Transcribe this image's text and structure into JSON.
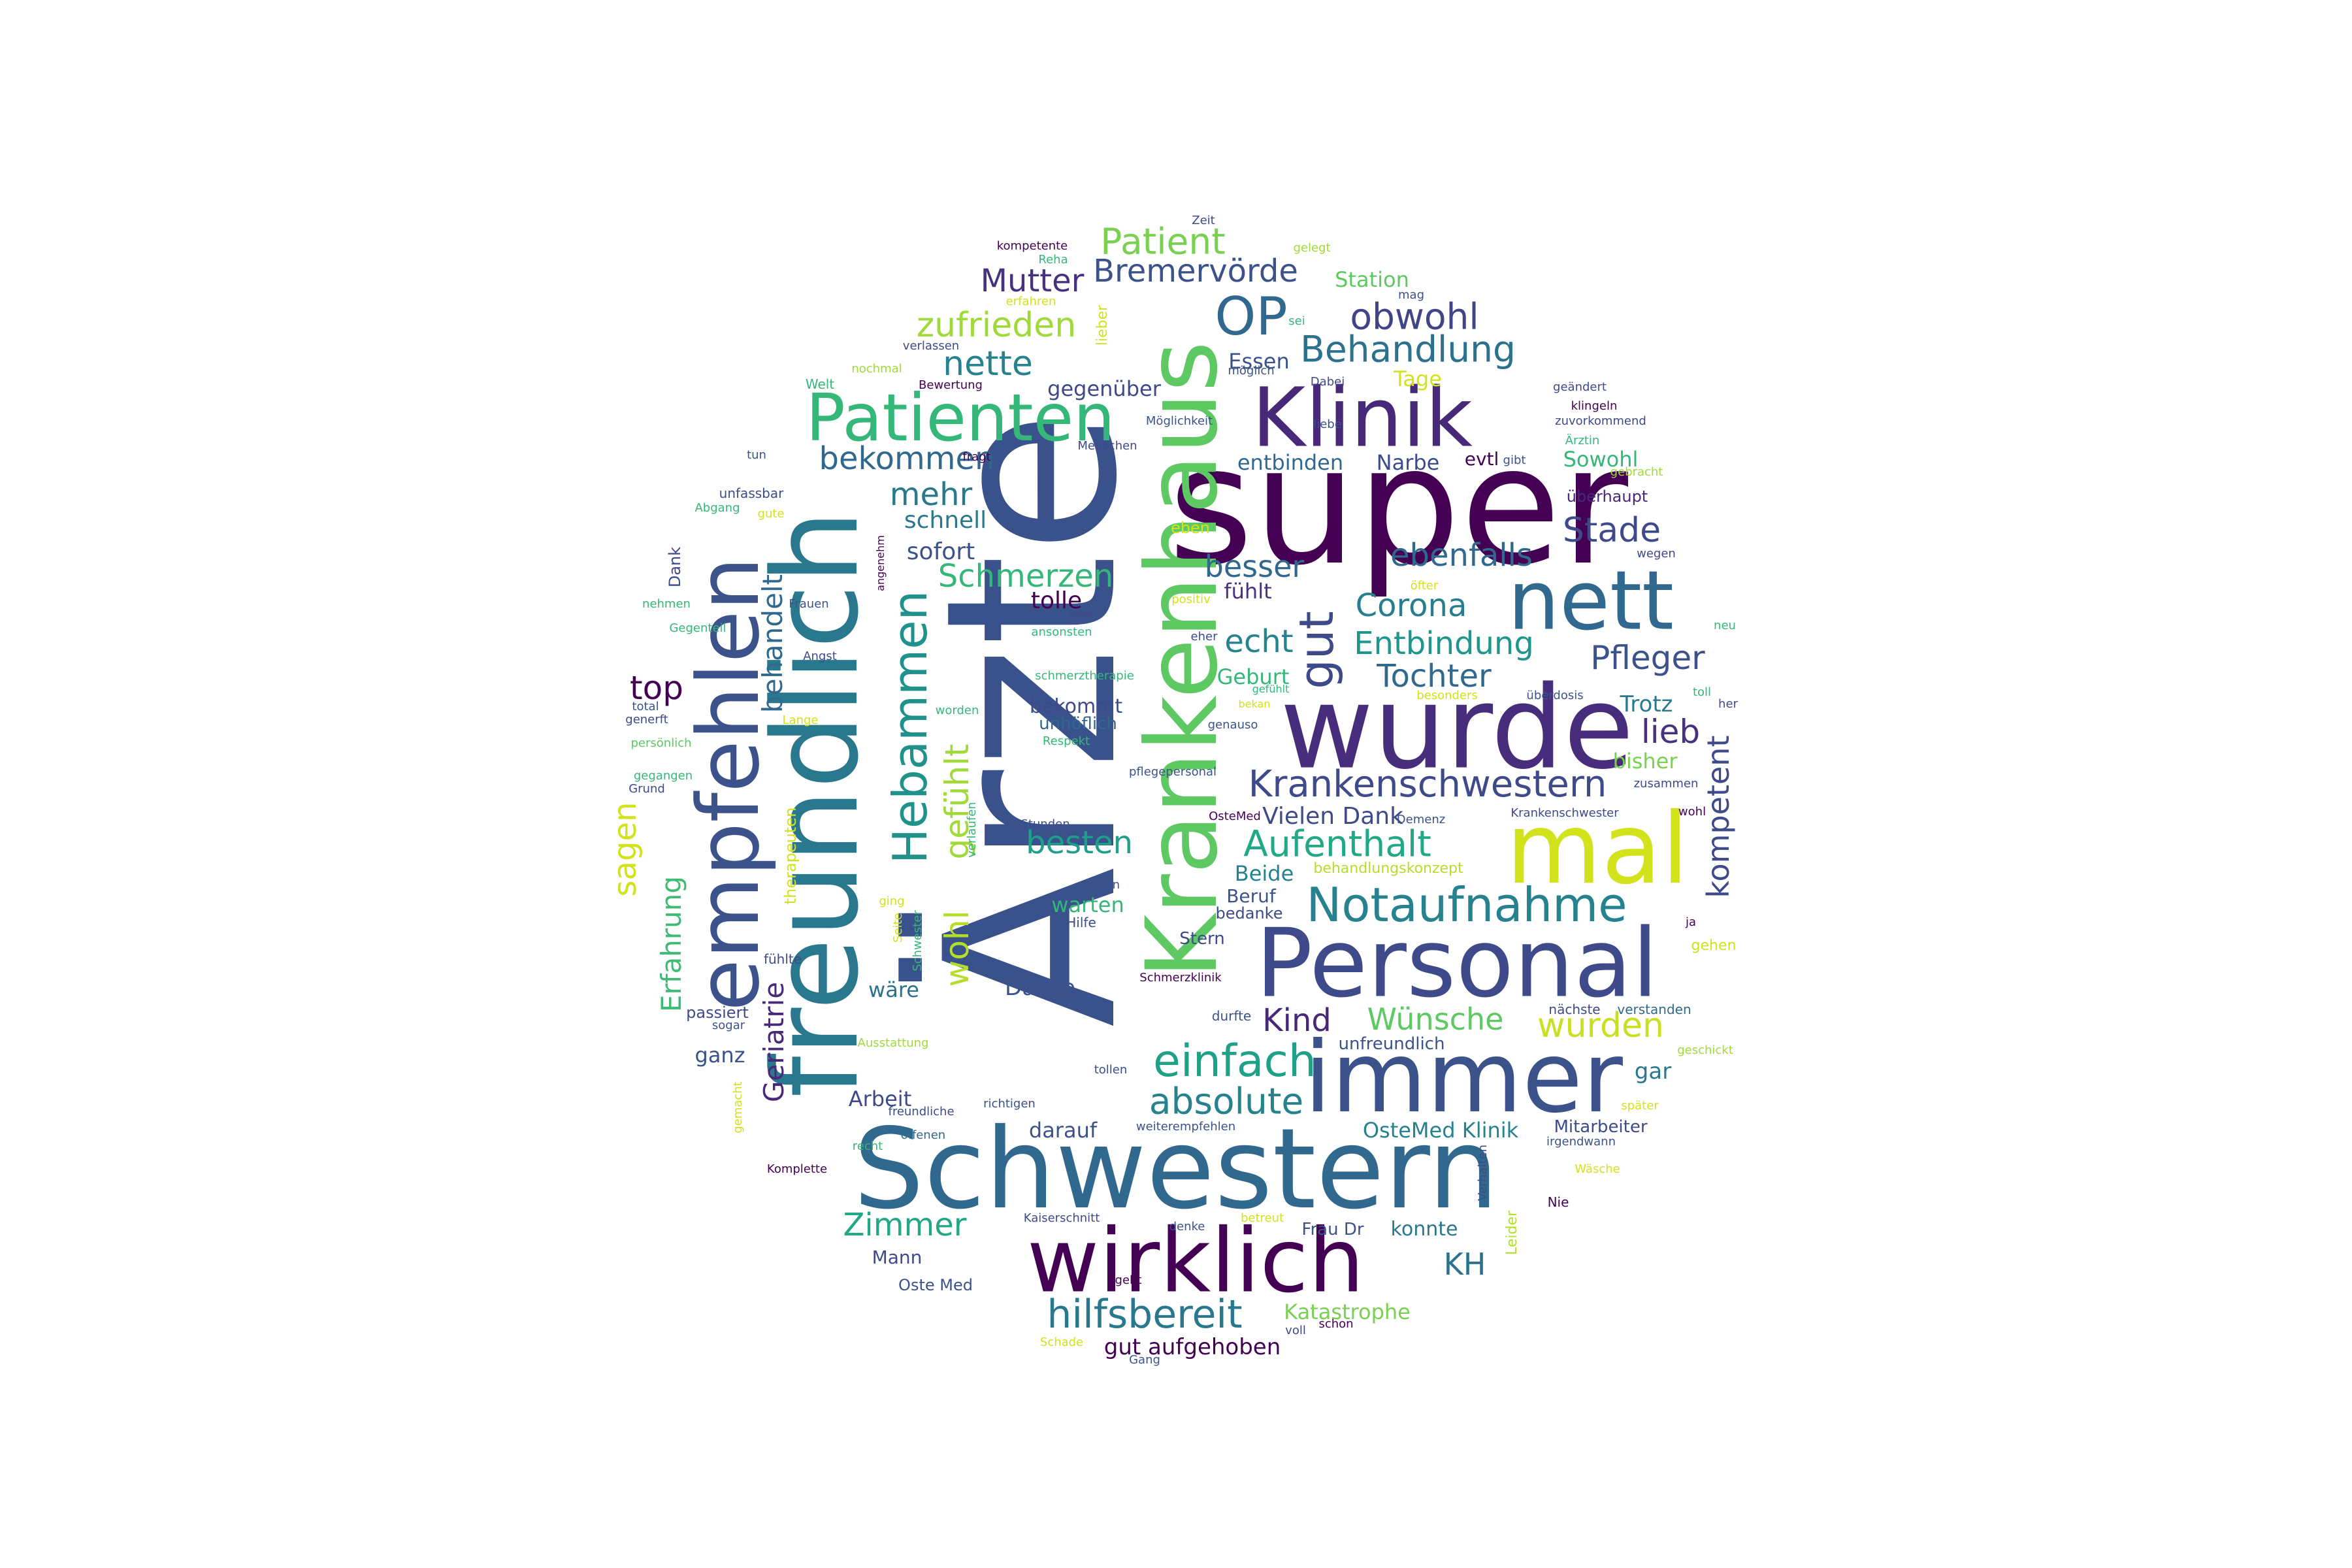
{
  "words": [
    {
      "text": "Ärzte",
      "color": "#3a528b",
      "rotated": true
    },
    {
      "text": "super",
      "color": "#440154",
      "rotated": false
    },
    {
      "text": "Schwestern",
      "color": "#31688e",
      "rotated": false
    },
    {
      "text": "freundlich",
      "color": "#2a788e",
      "rotated": true
    },
    {
      "text": "Krankenhaus",
      "color": "#5ec962",
      "rotated": true
    },
    {
      "text": "wurde",
      "color": "#472d7b",
      "rotated": false
    },
    {
      "text": "immer",
      "color": "#3b528b",
      "rotated": false
    },
    {
      "text": "Personal",
      "color": "#3e4a89",
      "rotated": false
    },
    {
      "text": "wirklich",
      "color": "#440154",
      "rotated": false
    },
    {
      "text": "empfehlen",
      "color": "#3b528b",
      "rotated": true
    },
    {
      "text": "mal",
      "color": "#d2e21b",
      "rotated": false
    },
    {
      "text": "Klinik",
      "color": "#482878",
      "rotated": false
    },
    {
      "text": "nett",
      "color": "#31688e",
      "rotated": false
    },
    {
      "text": "Patienten",
      "color": "#35b779",
      "rotated": false
    },
    {
      "text": "Notaufnahme",
      "color": "#26828e",
      "rotated": false
    },
    {
      "text": "gut",
      "color": "#3e4989",
      "rotated": true
    },
    {
      "text": "Hebammen",
      "color": "#21918c",
      "rotated": true
    },
    {
      "text": "einfach",
      "color": "#1fa187",
      "rotated": false
    },
    {
      "text": "OP",
      "color": "#31688e",
      "rotated": false
    },
    {
      "text": "Krankenschwestern",
      "color": "#3e4a89",
      "rotated": false
    },
    {
      "text": "hilfsbereit",
      "color": "#2a788e",
      "rotated": false
    },
    {
      "text": "absolute",
      "color": "#26828e",
      "rotated": false
    },
    {
      "text": "Aufenthalt",
      "color": "#22a884",
      "rotated": false
    },
    {
      "text": "Behandlung",
      "color": "#2c728e",
      "rotated": false
    },
    {
      "text": "obwohl",
      "color": "#414487",
      "rotated": false
    },
    {
      "text": "nette",
      "color": "#26828e",
      "rotated": false
    },
    {
      "text": "zufrieden",
      "color": "#a0da39",
      "rotated": false
    },
    {
      "text": "Patient",
      "color": "#7ad151",
      "rotated": false
    },
    {
      "text": "Bremervörde",
      "color": "#3b528b",
      "rotated": false
    },
    {
      "text": "Mutter",
      "color": "#46327e",
      "rotated": false
    },
    {
      "text": "bekommen",
      "color": "#31688e",
      "rotated": false
    },
    {
      "text": "mehr",
      "color": "#2a788e",
      "rotated": false
    },
    {
      "text": "Schmerzen",
      "color": "#35b779",
      "rotated": false
    },
    {
      "text": "wohl",
      "color": "#b5de2b",
      "rotated": true
    },
    {
      "text": "gefühlt",
      "color": "#a0da39",
      "rotated": true
    },
    {
      "text": "besten",
      "color": "#1f9e89",
      "rotated": false
    },
    {
      "text": "echt",
      "color": "#26828e",
      "rotated": false
    },
    {
      "text": "Corona",
      "color": "#287d8e",
      "rotated": false
    },
    {
      "text": "Entbindung",
      "color": "#1f968b",
      "rotated": false
    },
    {
      "text": "Tochter",
      "color": "#31688e",
      "rotated": false
    },
    {
      "text": "Pfleger",
      "color": "#3b528b",
      "rotated": false
    },
    {
      "text": "lieb",
      "color": "#46327e",
      "rotated": false
    },
    {
      "text": "ebenfalls",
      "color": "#31688e",
      "rotated": false
    },
    {
      "text": "Stade",
      "color": "#3e4a89",
      "rotated": false
    },
    {
      "text": "wurden",
      "color": "#c8e020",
      "rotated": false
    },
    {
      "text": "Wünsche",
      "color": "#5ec962",
      "rotated": false
    },
    {
      "text": "Kind",
      "color": "#482878",
      "rotated": false
    },
    {
      "text": "Zimmer",
      "color": "#22a884",
      "rotated": false
    },
    {
      "text": "KH",
      "color": "#2c728e",
      "rotated": false
    },
    {
      "text": "kompetent",
      "color": "#3e4a89",
      "rotated": true
    },
    {
      "text": "top",
      "color": "#440154",
      "rotated": false
    },
    {
      "text": "behandelt",
      "color": "#31688e",
      "rotated": true
    },
    {
      "text": "sagen",
      "color": "#d2e21b",
      "rotated": true
    },
    {
      "text": "Erfahrung",
      "color": "#3fbc73",
      "rotated": true
    },
    {
      "text": "Geriatrie",
      "color": "#482878",
      "rotated": true
    },
    {
      "text": "besser",
      "color": "#31688e",
      "rotated": false
    },
    {
      "text": "schnell",
      "color": "#2a788e",
      "rotated": false
    },
    {
      "text": "sofort",
      "color": "#3b528b",
      "rotated": false
    },
    {
      "text": "tolle",
      "color": "#440154",
      "rotated": false
    },
    {
      "text": "fühlt",
      "color": "#46327e",
      "rotated": false
    },
    {
      "text": "Geburt",
      "color": "#35b779",
      "rotated": false
    },
    {
      "text": "Vielen Dank",
      "color": "#3e4a89",
      "rotated": false
    },
    {
      "text": "Trotz",
      "color": "#2a788e",
      "rotated": false
    },
    {
      "text": "bisher",
      "color": "#7ad151",
      "rotated": false
    },
    {
      "text": "Sowohl",
      "color": "#35b779",
      "rotated": false
    },
    {
      "text": "überhaupt",
      "color": "#482878",
      "rotated": false
    },
    {
      "text": "Narbe",
      "color": "#3e4a89",
      "rotated": false
    },
    {
      "text": "entbinden",
      "color": "#31688e",
      "rotated": false
    },
    {
      "text": "evtl",
      "color": "#440154",
      "rotated": false
    },
    {
      "text": "Essen",
      "color": "#3b528b",
      "rotated": false
    },
    {
      "text": "Tage",
      "color": "#d2e21b",
      "rotated": false
    },
    {
      "text": "gegenüber",
      "color": "#3e4a89",
      "rotated": false
    },
    {
      "text": "Station",
      "color": "#5ec962",
      "rotated": false
    },
    {
      "text": "Beide",
      "color": "#26828e",
      "rotated": false
    },
    {
      "text": "Beruf",
      "color": "#3b528b",
      "rotated": false
    },
    {
      "text": "bedanke",
      "color": "#3e4a89",
      "rotated": false
    },
    {
      "text": "warten",
      "color": "#35b779",
      "rotated": false
    },
    {
      "text": "Danke",
      "color": "#3b528b",
      "rotated": false
    },
    {
      "text": "wäre",
      "color": "#2c728e",
      "rotated": false
    },
    {
      "text": "ganz",
      "color": "#3b528b",
      "rotated": false
    },
    {
      "text": "Arbeit",
      "color": "#3e4a89",
      "rotated": false
    },
    {
      "text": "darauf",
      "color": "#3b528b",
      "rotated": false
    },
    {
      "text": "OsteMed Klinik",
      "color": "#26828e",
      "rotated": false
    },
    {
      "text": "Mitarbeiter",
      "color": "#3e4a89",
      "rotated": false
    },
    {
      "text": "gar",
      "color": "#2a788e",
      "rotated": false
    },
    {
      "text": "Katastrophe",
      "color": "#7ad151",
      "rotated": false
    },
    {
      "text": "gut aufgehoben",
      "color": "#440154",
      "rotated": false
    },
    {
      "text": "konnte",
      "color": "#2a788e",
      "rotated": false
    },
    {
      "text": "Frau Dr",
      "color": "#3b528b",
      "rotated": false
    },
    {
      "text": "Mann",
      "color": "#3e4a89",
      "rotated": false
    },
    {
      "text": "Oste Med",
      "color": "#3b528b",
      "rotated": false
    },
    {
      "text": "bekommt",
      "color": "#3e4a89",
      "rotated": false
    },
    {
      "text": "unhöflich",
      "color": "#31688e",
      "rotated": false
    },
    {
      "text": "behandlungskonzept",
      "color": "#b5de2b",
      "rotated": false
    },
    {
      "text": "unfreundlich",
      "color": "#3b528b",
      "rotated": false
    },
    {
      "text": "Stern",
      "color": "#3e4a89",
      "rotated": false
    },
    {
      "text": "Schmerzklinik",
      "color": "#440154",
      "rotated": false
    },
    {
      "text": "durfte",
      "color": "#3b528b",
      "rotated": false
    },
    {
      "text": "nächste",
      "color": "#3e4a89",
      "rotated": false
    },
    {
      "text": "verstanden",
      "color": "#31688e",
      "rotated": false
    },
    {
      "text": "gehen",
      "color": "#d2e21b",
      "rotated": false
    },
    {
      "text": "geschickt",
      "color": "#a0da39",
      "rotated": false
    },
    {
      "text": "später",
      "color": "#d2e21b",
      "rotated": false
    },
    {
      "text": "irgendwann",
      "color": "#3b528b",
      "rotated": false
    },
    {
      "text": "Wäsche",
      "color": "#d2e21b",
      "rotated": false
    },
    {
      "text": "Nie",
      "color": "#440154",
      "rotated": false
    },
    {
      "text": "Leider",
      "color": "#b5de2b",
      "rotated": true
    },
    {
      "text": "Verhalten",
      "color": "#3e4a89",
      "rotated": true
    },
    {
      "text": "betreut",
      "color": "#d2e21b",
      "rotated": false
    },
    {
      "text": "denke",
      "color": "#3b528b",
      "rotated": false
    },
    {
      "text": "Kaiserschnitt",
      "color": "#3e4a89",
      "rotated": false
    },
    {
      "text": "geht",
      "color": "#440154",
      "rotated": false
    },
    {
      "text": "Schade",
      "color": "#d2e21b",
      "rotated": false
    },
    {
      "text": "voll",
      "color": "#3e4a89",
      "rotated": false
    },
    {
      "text": "schon",
      "color": "#440154",
      "rotated": false
    },
    {
      "text": "Gang",
      "color": "#3b528b",
      "rotated": false
    },
    {
      "text": "weiterempfehlen",
      "color": "#3b528b",
      "rotated": false
    },
    {
      "text": "tollen",
      "color": "#3e4a89",
      "rotated": false
    },
    {
      "text": "richtigen",
      "color": "#3b528b",
      "rotated": false
    },
    {
      "text": "freundliche",
      "color": "#3e4a89",
      "rotated": false
    },
    {
      "text": "offenen",
      "color": "#31688e",
      "rotated": false
    },
    {
      "text": "recht",
      "color": "#35b779",
      "rotated": false
    },
    {
      "text": "Komplette",
      "color": "#440154",
      "rotated": false
    },
    {
      "text": "Ausstattung",
      "color": "#a0da39",
      "rotated": false
    },
    {
      "text": "gemacht",
      "color": "#d2e21b",
      "rotated": true
    },
    {
      "text": "passiert",
      "color": "#3e4a89",
      "rotated": false
    },
    {
      "text": "sogar",
      "color": "#3b528b",
      "rotated": false
    },
    {
      "text": "fühlte",
      "color": "#3e4a89",
      "rotated": false
    },
    {
      "text": "therapeuten",
      "color": "#d2e21b",
      "rotated": true
    },
    {
      "text": "Seite",
      "color": "#d2e21b",
      "rotated": true
    },
    {
      "text": "Schwester",
      "color": "#35b779",
      "rotated": true
    },
    {
      "text": "ging",
      "color": "#d2e21b",
      "rotated": false
    },
    {
      "text": "verlaufen",
      "color": "#35b779",
      "rotated": true
    },
    {
      "text": "Hilfe",
      "color": "#3e4a89",
      "rotated": false
    },
    {
      "text": "deren",
      "color": "#3b528b",
      "rotated": false
    },
    {
      "text": "Stunden",
      "color": "#3e4a89",
      "rotated": false
    },
    {
      "text": "OsteMed",
      "color": "#440154",
      "rotated": false
    },
    {
      "text": "pflegepersonal",
      "color": "#3b528b",
      "rotated": false
    },
    {
      "text": "Demenz",
      "color": "#3b528b",
      "rotated": false
    },
    {
      "text": "Krankenschwester",
      "color": "#3e4a89",
      "rotated": false
    },
    {
      "text": "wohl",
      "color": "#440154",
      "rotated": false
    },
    {
      "text": "zusammen",
      "color": "#3e4a89",
      "rotated": false
    },
    {
      "text": "ja",
      "color": "#440154",
      "rotated": false
    },
    {
      "text": "genauso",
      "color": "#3b528b",
      "rotated": false
    },
    {
      "text": "Respekt",
      "color": "#35b779",
      "rotated": false
    },
    {
      "text": "worden",
      "color": "#35b779",
      "rotated": false
    },
    {
      "text": "Lange",
      "color": "#d2e21b",
      "rotated": false
    },
    {
      "text": "persönlich",
      "color": "#5ec962",
      "rotated": false
    },
    {
      "text": "gegangen",
      "color": "#35b779",
      "rotated": false
    },
    {
      "text": "Grund",
      "color": "#3e4a89",
      "rotated": false
    },
    {
      "text": "generft",
      "color": "#3e4a89",
      "rotated": false
    },
    {
      "text": "total",
      "color": "#3b528b",
      "rotated": false
    },
    {
      "text": "Gegenteil",
      "color": "#35b779",
      "rotated": false
    },
    {
      "text": "nehmen",
      "color": "#35b779",
      "rotated": false
    },
    {
      "text": "Angst",
      "color": "#3e4a89",
      "rotated": false
    },
    {
      "text": "Frauen",
      "color": "#3b528b",
      "rotated": false
    },
    {
      "text": "Dank",
      "color": "#3e4a89",
      "rotated": true
    },
    {
      "text": "angenehm",
      "color": "#440154",
      "rotated": true
    },
    {
      "text": "Abgang",
      "color": "#35b779",
      "rotated": false
    },
    {
      "text": "gute",
      "color": "#d2e21b",
      "rotated": false
    },
    {
      "text": "unfassbar",
      "color": "#3e4a89",
      "rotated": false
    },
    {
      "text": "tun",
      "color": "#3b528b",
      "rotated": false
    },
    {
      "text": "Welt",
      "color": "#35b779",
      "rotated": false
    },
    {
      "text": "nochmal",
      "color": "#a0da39",
      "rotated": false
    },
    {
      "text": "verlassen",
      "color": "#3e4a89",
      "rotated": false
    },
    {
      "text": "erfahren",
      "color": "#d2e21b",
      "rotated": false
    },
    {
      "text": "Reha",
      "color": "#35b779",
      "rotated": false
    },
    {
      "text": "kompetente",
      "color": "#440154",
      "rotated": false
    },
    {
      "text": "Zeit",
      "color": "#3e4a89",
      "rotated": false
    },
    {
      "text": "gelegt",
      "color": "#a0da39",
      "rotated": false
    },
    {
      "text": "mag",
      "color": "#3b528b",
      "rotated": false
    },
    {
      "text": "sei",
      "color": "#35b779",
      "rotated": false
    },
    {
      "text": "lieber",
      "color": "#d2e21b",
      "rotated": true
    },
    {
      "text": "Bewertung",
      "color": "#440154",
      "rotated": false
    },
    {
      "text": "möglich",
      "color": "#3b528b",
      "rotated": false
    },
    {
      "text": "Dabei",
      "color": "#3e4a89",
      "rotated": false
    },
    {
      "text": "Möglichkeit",
      "color": "#3b528b",
      "rotated": false
    },
    {
      "text": "Menschen",
      "color": "#3e4a89",
      "rotated": false
    },
    {
      "text": "liebe",
      "color": "#3b528b",
      "rotated": false
    },
    {
      "text": "fragt",
      "color": "#440154",
      "rotated": false
    },
    {
      "text": "geändert",
      "color": "#3e4a89",
      "rotated": false
    },
    {
      "text": "klingeln",
      "color": "#440154",
      "rotated": false
    },
    {
      "text": "zuvorkommend",
      "color": "#3e4a89",
      "rotated": false
    },
    {
      "text": "Ärztin",
      "color": "#35b779",
      "rotated": false
    },
    {
      "text": "gibt",
      "color": "#3b528b",
      "rotated": false
    },
    {
      "text": "gebracht",
      "color": "#a0da39",
      "rotated": false
    },
    {
      "text": "wegen",
      "color": "#3e4a89",
      "rotated": false
    },
    {
      "text": "eben",
      "color": "#d2e21b",
      "rotated": false
    },
    {
      "text": "öfter",
      "color": "#d2e21b",
      "rotated": false
    },
    {
      "text": "positiv",
      "color": "#d2e21b",
      "rotated": false
    },
    {
      "text": "neu",
      "color": "#35b779",
      "rotated": false
    },
    {
      "text": "bzw",
      "color": "#3e4a89",
      "rotated": false
    },
    {
      "text": "ansonsten",
      "color": "#35b779",
      "rotated": false
    },
    {
      "text": "eher",
      "color": "#3e4a89",
      "rotated": false
    },
    {
      "text": "schmerztherapie",
      "color": "#35b779",
      "rotated": false
    },
    {
      "text": "gefühlt",
      "color": "#35b779",
      "rotated": false
    },
    {
      "text": "bekan",
      "color": "#d2e21b",
      "rotated": false
    },
    {
      "text": "toll",
      "color": "#35b779",
      "rotated": false
    },
    {
      "text": "her",
      "color": "#3e4a89",
      "rotated": false
    },
    {
      "text": "überdosis",
      "color": "#3b528b",
      "rotated": false
    },
    {
      "text": "besonders",
      "color": "#d2e21b",
      "rotated": false
    }
  ]
}
